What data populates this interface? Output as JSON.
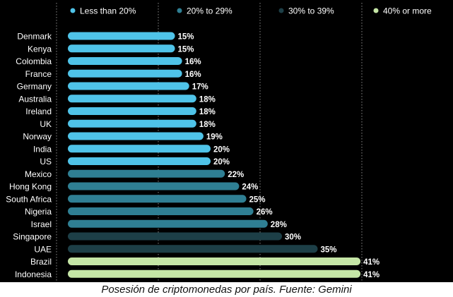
{
  "caption": "Posesión de criptomonedas por país. Fuente: Gemini",
  "chart_data": {
    "type": "bar",
    "orientation": "horizontal",
    "title": "",
    "xlabel": "",
    "ylabel": "",
    "xlim": [
      0,
      42
    ],
    "grid": "vertical dotted",
    "legend_position": "top",
    "value_suffix": "%",
    "legend": [
      {
        "label": "Less than 20%",
        "color": "#4fc3e8"
      },
      {
        "label": "20% to 29%",
        "color": "#2f7f93"
      },
      {
        "label": "30% to 39%",
        "color": "#1d3f47"
      },
      {
        "label": "40% or more",
        "color": "#c5e6a6"
      }
    ],
    "categories": [
      "Denmark",
      "Kenya",
      "Colombia",
      "France",
      "Germany",
      "Australia",
      "Ireland",
      "UK",
      "Norway",
      "India",
      "US",
      "Mexico",
      "Hong Kong",
      "South Africa",
      "Nigeria",
      "Israel",
      "Singapore",
      "UAE",
      "Brazil",
      "Indonesia"
    ],
    "values": [
      15,
      15,
      16,
      16,
      17,
      18,
      18,
      18,
      19,
      20,
      20,
      22,
      24,
      25,
      26,
      28,
      30,
      35,
      41,
      41
    ],
    "bar_colors": [
      "#4fc3e8",
      "#4fc3e8",
      "#4fc3e8",
      "#4fc3e8",
      "#4fc3e8",
      "#4fc3e8",
      "#4fc3e8",
      "#4fc3e8",
      "#4fc3e8",
      "#4fc3e8",
      "#4fc3e8",
      "#2f7f93",
      "#2f7f93",
      "#2f7f93",
      "#2f7f93",
      "#2f7f93",
      "#1d3f47",
      "#1d3f47",
      "#c5e6a6",
      "#c5e6a6"
    ]
  }
}
